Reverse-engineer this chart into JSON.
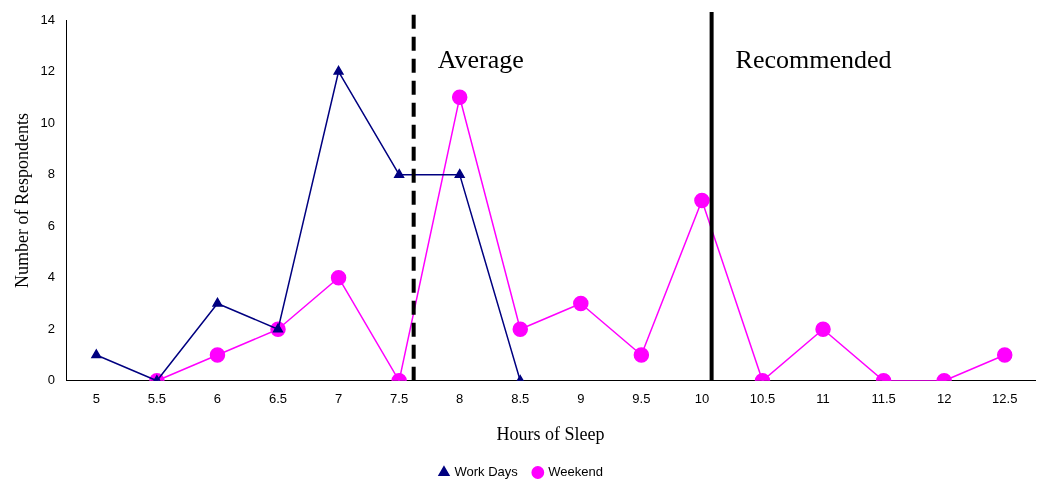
{
  "chart_data": {
    "type": "line",
    "xlabel": "Hours of Sleep",
    "ylabel": "Number of Respondents",
    "xlim": [
      4.75,
      12.75
    ],
    "xticks": [
      5,
      5.5,
      6,
      6.5,
      7,
      7.5,
      8,
      8.5,
      9,
      9.5,
      10,
      10.5,
      11,
      11.5,
      12,
      12.5
    ],
    "ylim": [
      0,
      14
    ],
    "yticks": [
      0,
      2,
      4,
      6,
      8,
      10,
      12,
      14
    ],
    "series": [
      {
        "name": "Work Days",
        "color": "#000080",
        "marker": "triangle",
        "x": [
          5,
          5.5,
          6,
          6.5,
          7,
          7.5,
          8,
          8.5
        ],
        "values": [
          1,
          0,
          3,
          2,
          12,
          8,
          8,
          0
        ]
      },
      {
        "name": "Weekend",
        "color": "#ff00ff",
        "marker": "circle",
        "x": [
          5.5,
          6,
          6.5,
          7,
          7.5,
          8,
          8.5,
          9,
          9.5,
          10,
          10.5,
          11,
          11.5,
          12,
          12.5
        ],
        "values": [
          0,
          1,
          2,
          4,
          0,
          11,
          2,
          3,
          1,
          7,
          0,
          2,
          0,
          0,
          1
        ]
      }
    ],
    "ref_lines": [
      {
        "axis": "x",
        "value": 7.62,
        "label": "Average",
        "line_style": "dashed",
        "color": "#000000"
      },
      {
        "axis": "x",
        "value": 10.08,
        "label": "Recommended",
        "line_style": "solid",
        "color": "#000000"
      }
    ],
    "grid": false,
    "legend": "bottom"
  }
}
